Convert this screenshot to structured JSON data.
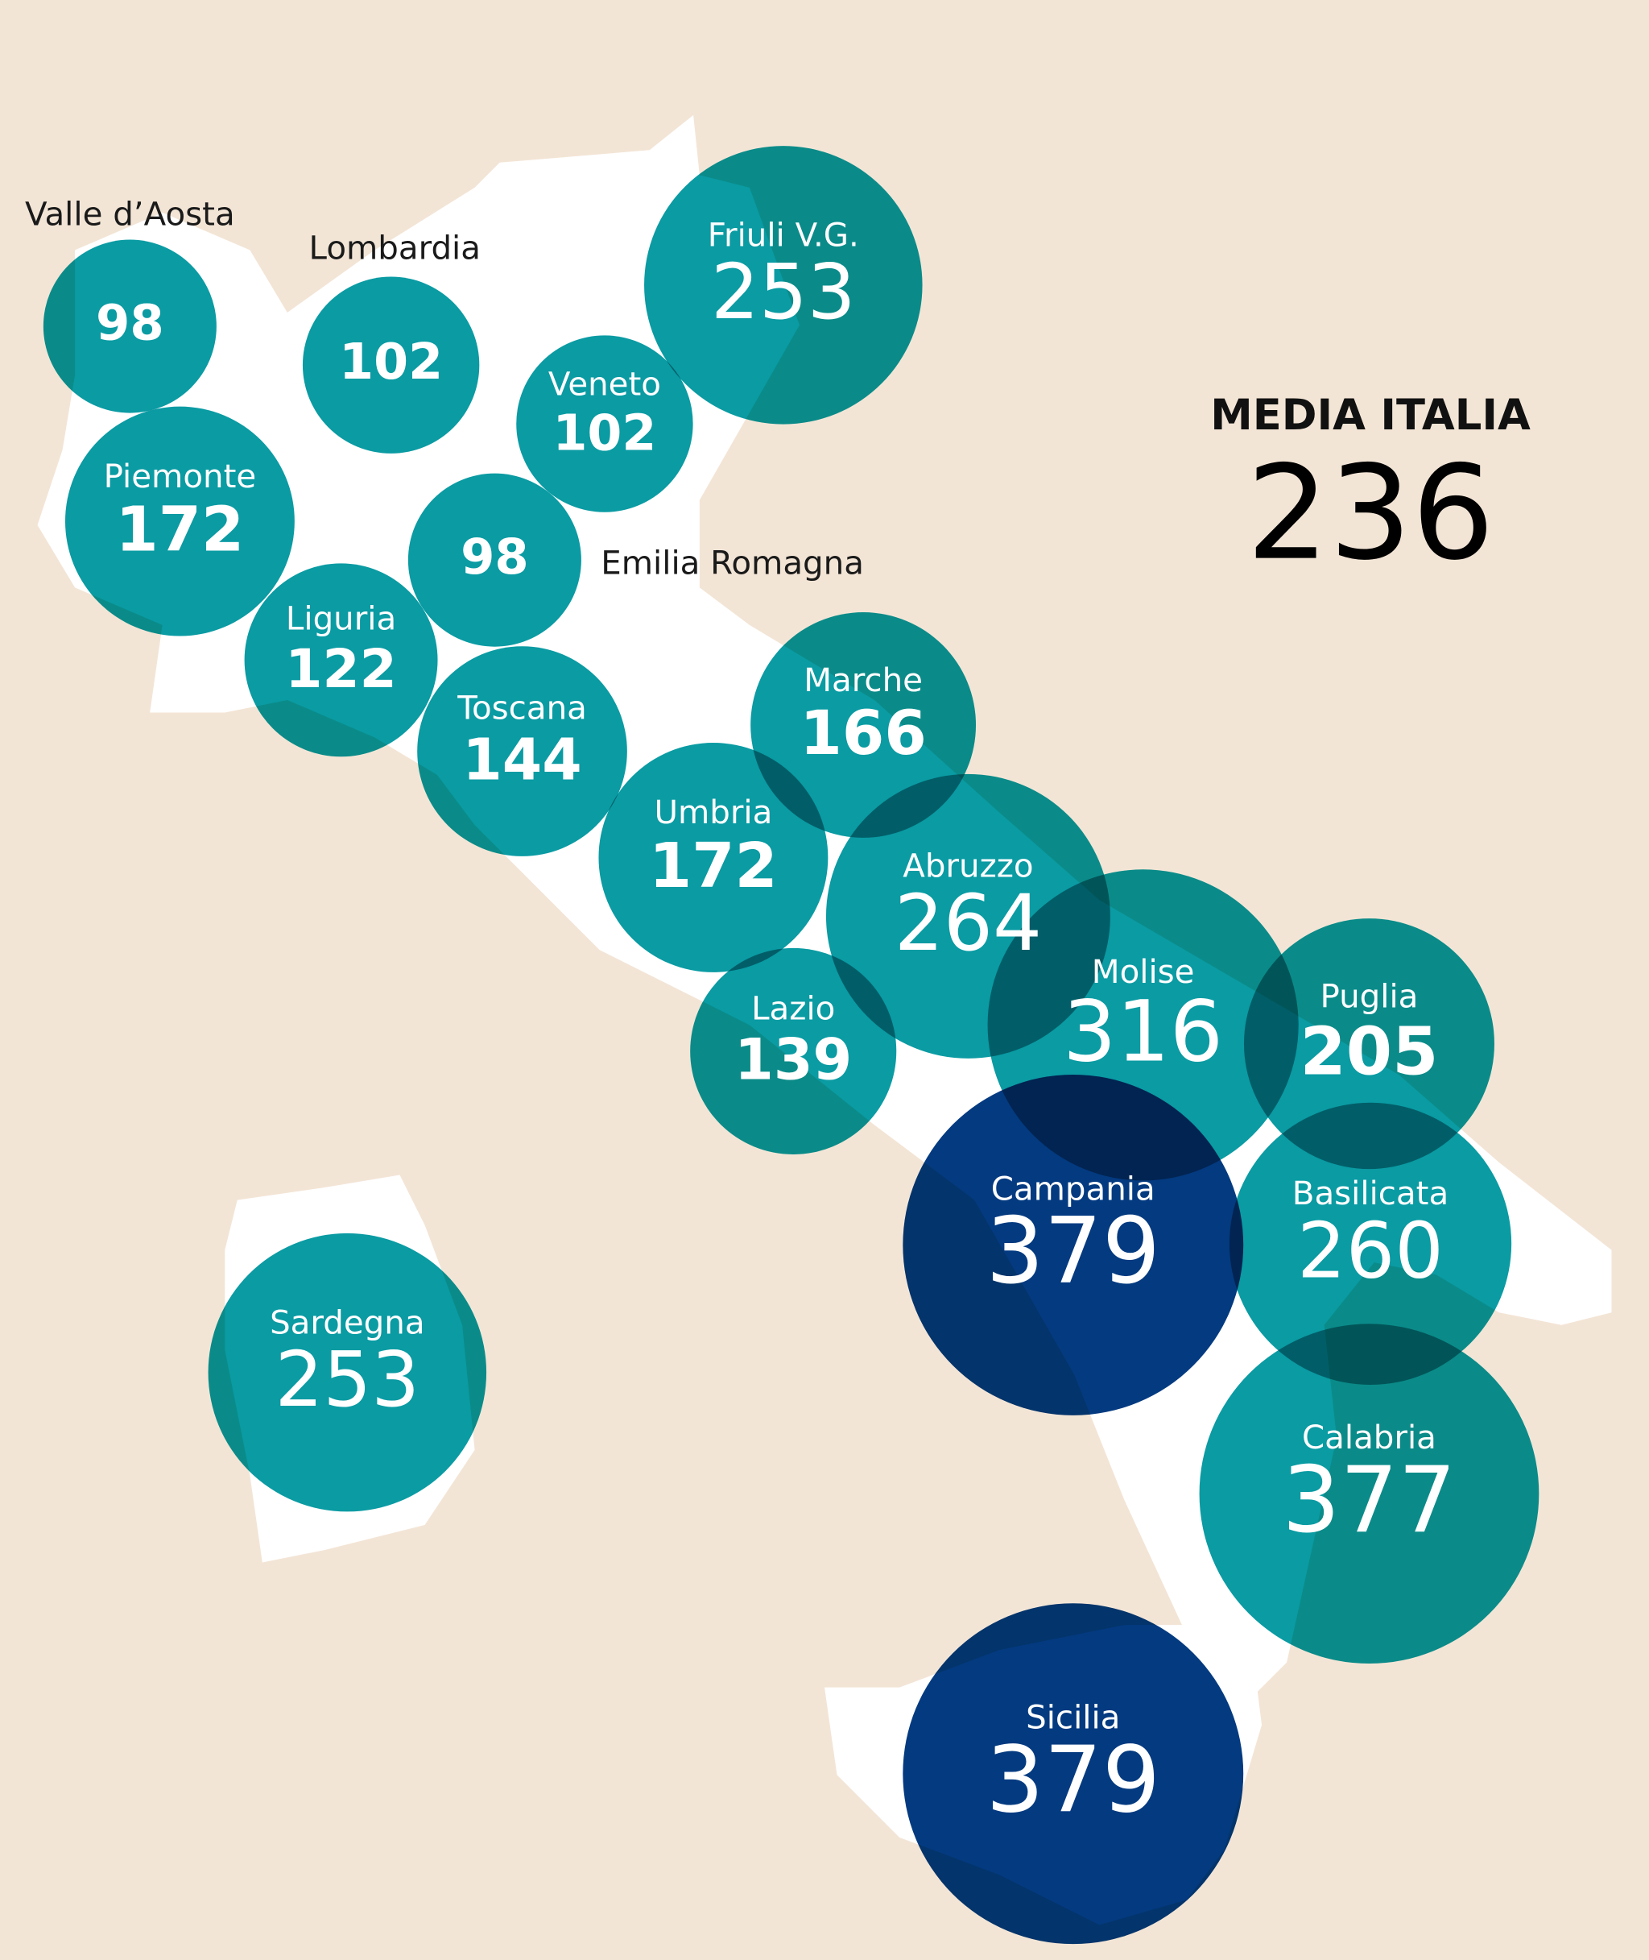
{
  "summary": {
    "title": "MEDIA ITALIA",
    "value": 236
  },
  "regions": [
    {
      "name": "Valle d’Aosta",
      "value": 98,
      "color": "#0a9ba3"
    },
    {
      "name": "Lombardia",
      "value": 102,
      "color": "#0a9ba3"
    },
    {
      "name": "Friuli V.G.",
      "value": 253,
      "color": "#0a9ba3"
    },
    {
      "name": "Veneto",
      "value": 102,
      "color": "#0a9ba3"
    },
    {
      "name": "Piemonte",
      "value": 172,
      "color": "#0a9ba3"
    },
    {
      "name": "Emilia Romagna",
      "value": 98,
      "color": "#0a9ba3"
    },
    {
      "name": "Liguria",
      "value": 122,
      "color": "#0a9ba3"
    },
    {
      "name": "Toscana",
      "value": 144,
      "color": "#0a9ba3"
    },
    {
      "name": "Marche",
      "value": 166,
      "color": "#0a9ba3"
    },
    {
      "name": "Umbria",
      "value": 172,
      "color": "#0a9ba3"
    },
    {
      "name": "Abruzzo",
      "value": 264,
      "color": "#0a9ba3"
    },
    {
      "name": "Lazio",
      "value": 139,
      "color": "#0a9ba3"
    },
    {
      "name": "Molise",
      "value": 316,
      "color": "#0a9ba3"
    },
    {
      "name": "Puglia",
      "value": 205,
      "color": "#0a9ba3"
    },
    {
      "name": "Campania",
      "value": 379,
      "color": "#033a80"
    },
    {
      "name": "Basilicata",
      "value": 260,
      "color": "#0a9ba3"
    },
    {
      "name": "Sardegna",
      "value": 253,
      "color": "#0a9ba3"
    },
    {
      "name": "Calabria",
      "value": 377,
      "color": "#0a9ba3"
    },
    {
      "name": "Sicilia",
      "value": 379,
      "color": "#033a80"
    }
  ]
}
